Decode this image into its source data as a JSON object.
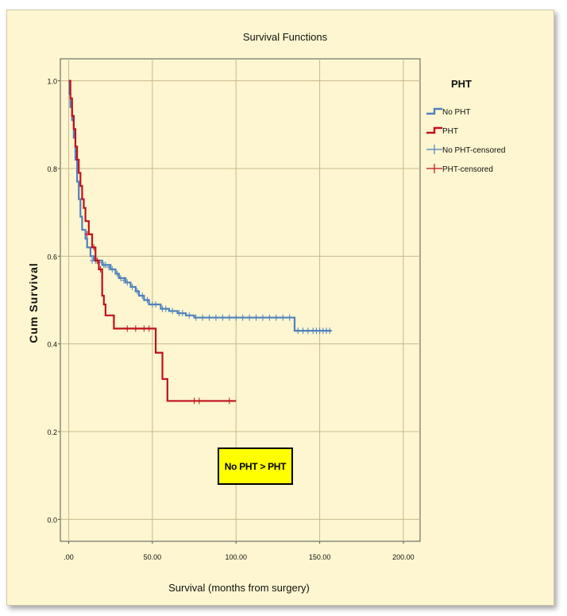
{
  "chart_data": {
    "type": "line",
    "title": "Survival Functions",
    "xlabel": "Survival (months from surgery)",
    "ylabel": "Cum Survival",
    "xlim": [
      -5,
      210
    ],
    "ylim": [
      -0.05,
      1.05
    ],
    "x_ticks": [
      0,
      50,
      100,
      150,
      200
    ],
    "x_tick_labels": [
      ".00",
      "50.00",
      "100.00",
      "150.00",
      "200.00"
    ],
    "y_ticks": [
      0.0,
      0.2,
      0.4,
      0.6,
      0.8,
      1.0
    ],
    "y_tick_labels": [
      "0.0",
      "0.2",
      "0.4",
      "0.6",
      "0.8",
      "1.0"
    ],
    "grid": true,
    "legend_title": "PHT",
    "legend_position": "right",
    "legend": [
      {
        "label": "No PHT",
        "kind": "step",
        "color": "#4f81bd"
      },
      {
        "label": "PHT",
        "kind": "step",
        "color": "#c0111b"
      },
      {
        "label": "No PHT-censored",
        "kind": "censor",
        "color": "#4f81bd"
      },
      {
        "label": "PHT-censored",
        "kind": "censor",
        "color": "#c0111b"
      }
    ],
    "annotation": "No PHT > PHT",
    "series": [
      {
        "name": "No PHT",
        "color": "#4f81bd",
        "steps": [
          [
            0,
            1.0
          ],
          [
            0.5,
            0.97
          ],
          [
            1,
            0.94
          ],
          [
            2,
            0.91
          ],
          [
            3,
            0.87
          ],
          [
            4,
            0.82
          ],
          [
            5,
            0.77
          ],
          [
            6,
            0.73
          ],
          [
            7,
            0.69
          ],
          [
            8,
            0.66
          ],
          [
            10,
            0.64
          ],
          [
            11,
            0.62
          ],
          [
            13,
            0.6
          ],
          [
            15,
            0.59
          ],
          [
            20,
            0.58
          ],
          [
            25,
            0.57
          ],
          [
            28,
            0.56
          ],
          [
            30,
            0.55
          ],
          [
            34,
            0.54
          ],
          [
            37,
            0.53
          ],
          [
            40,
            0.52
          ],
          [
            42,
            0.51
          ],
          [
            45,
            0.5
          ],
          [
            48,
            0.49
          ],
          [
            55,
            0.48
          ],
          [
            60,
            0.475
          ],
          [
            65,
            0.47
          ],
          [
            70,
            0.465
          ],
          [
            75,
            0.46
          ],
          [
            135,
            0.43
          ],
          [
            157,
            0.43
          ]
        ],
        "censored": [
          [
            14,
            0.59
          ],
          [
            16,
            0.59
          ],
          [
            18,
            0.585
          ],
          [
            21,
            0.58
          ],
          [
            22,
            0.58
          ],
          [
            24,
            0.575
          ],
          [
            26,
            0.57
          ],
          [
            29,
            0.56
          ],
          [
            31,
            0.55
          ],
          [
            33,
            0.545
          ],
          [
            35,
            0.54
          ],
          [
            38,
            0.53
          ],
          [
            41,
            0.52
          ],
          [
            44,
            0.51
          ],
          [
            47,
            0.5
          ],
          [
            50,
            0.49
          ],
          [
            52,
            0.49
          ],
          [
            56,
            0.48
          ],
          [
            58,
            0.48
          ],
          [
            62,
            0.475
          ],
          [
            66,
            0.47
          ],
          [
            68,
            0.47
          ],
          [
            72,
            0.465
          ],
          [
            76,
            0.46
          ],
          [
            80,
            0.46
          ],
          [
            84,
            0.46
          ],
          [
            88,
            0.46
          ],
          [
            92,
            0.46
          ],
          [
            96,
            0.46
          ],
          [
            100,
            0.46
          ],
          [
            104,
            0.46
          ],
          [
            108,
            0.46
          ],
          [
            112,
            0.46
          ],
          [
            116,
            0.46
          ],
          [
            120,
            0.46
          ],
          [
            124,
            0.46
          ],
          [
            128,
            0.46
          ],
          [
            132,
            0.46
          ],
          [
            137,
            0.43
          ],
          [
            140,
            0.43
          ],
          [
            143,
            0.43
          ],
          [
            146,
            0.43
          ],
          [
            148,
            0.43
          ],
          [
            150,
            0.43
          ],
          [
            152,
            0.43
          ],
          [
            154,
            0.43
          ],
          [
            156,
            0.43
          ]
        ]
      },
      {
        "name": "PHT",
        "color": "#c0111b",
        "steps": [
          [
            0,
            1.0
          ],
          [
            1,
            0.96
          ],
          [
            2,
            0.92
          ],
          [
            3,
            0.89
          ],
          [
            4,
            0.85
          ],
          [
            5,
            0.82
          ],
          [
            6,
            0.79
          ],
          [
            7,
            0.76
          ],
          [
            8,
            0.73
          ],
          [
            9,
            0.71
          ],
          [
            10,
            0.68
          ],
          [
            12,
            0.65
          ],
          [
            14,
            0.62
          ],
          [
            16,
            0.59
          ],
          [
            18,
            0.57
          ],
          [
            20,
            0.51
          ],
          [
            21,
            0.49
          ],
          [
            22,
            0.465
          ],
          [
            27,
            0.435
          ],
          [
            52,
            0.38
          ],
          [
            56,
            0.32
          ],
          [
            59,
            0.27
          ],
          [
            100,
            0.27
          ]
        ],
        "censored": [
          [
            11,
            0.65
          ],
          [
            15,
            0.62
          ],
          [
            17,
            0.59
          ],
          [
            19,
            0.57
          ],
          [
            35,
            0.435
          ],
          [
            40,
            0.435
          ],
          [
            45,
            0.435
          ],
          [
            48,
            0.435
          ],
          [
            75,
            0.27
          ],
          [
            78,
            0.27
          ],
          [
            96,
            0.27
          ]
        ]
      }
    ]
  }
}
